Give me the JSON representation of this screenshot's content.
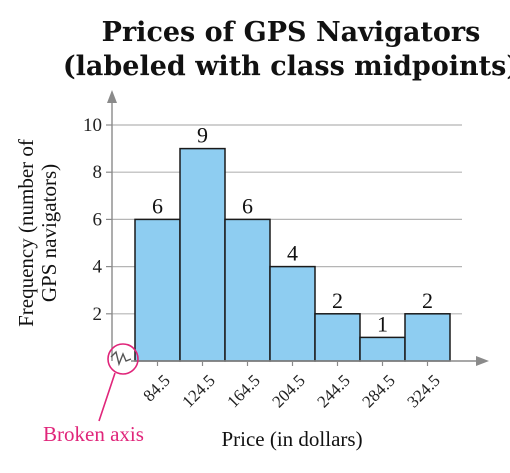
{
  "chart_data": {
    "type": "bar",
    "title_lines": [
      "Prices of GPS Navigators",
      "(labeled with class midpoints)"
    ],
    "categories": [
      "84.5",
      "124.5",
      "164.5",
      "204.5",
      "244.5",
      "284.5",
      "324.5"
    ],
    "values": [
      6,
      9,
      6,
      4,
      2,
      1,
      2
    ],
    "xlabel": "Price (in dollars)",
    "ylabel_lines": [
      "Frequency (number of",
      "GPS navigators)"
    ],
    "yticks": [
      2,
      4,
      6,
      8,
      10
    ],
    "ylim": [
      0,
      10
    ],
    "grid": true,
    "annotation": "Broken axis",
    "colors": {
      "bar_fill": "#8ecdf1",
      "bar_stroke": "#1a1a1a",
      "grid": "#b5b5b5",
      "axis": "#8a8a8a",
      "annotation": "#e0257a"
    }
  }
}
